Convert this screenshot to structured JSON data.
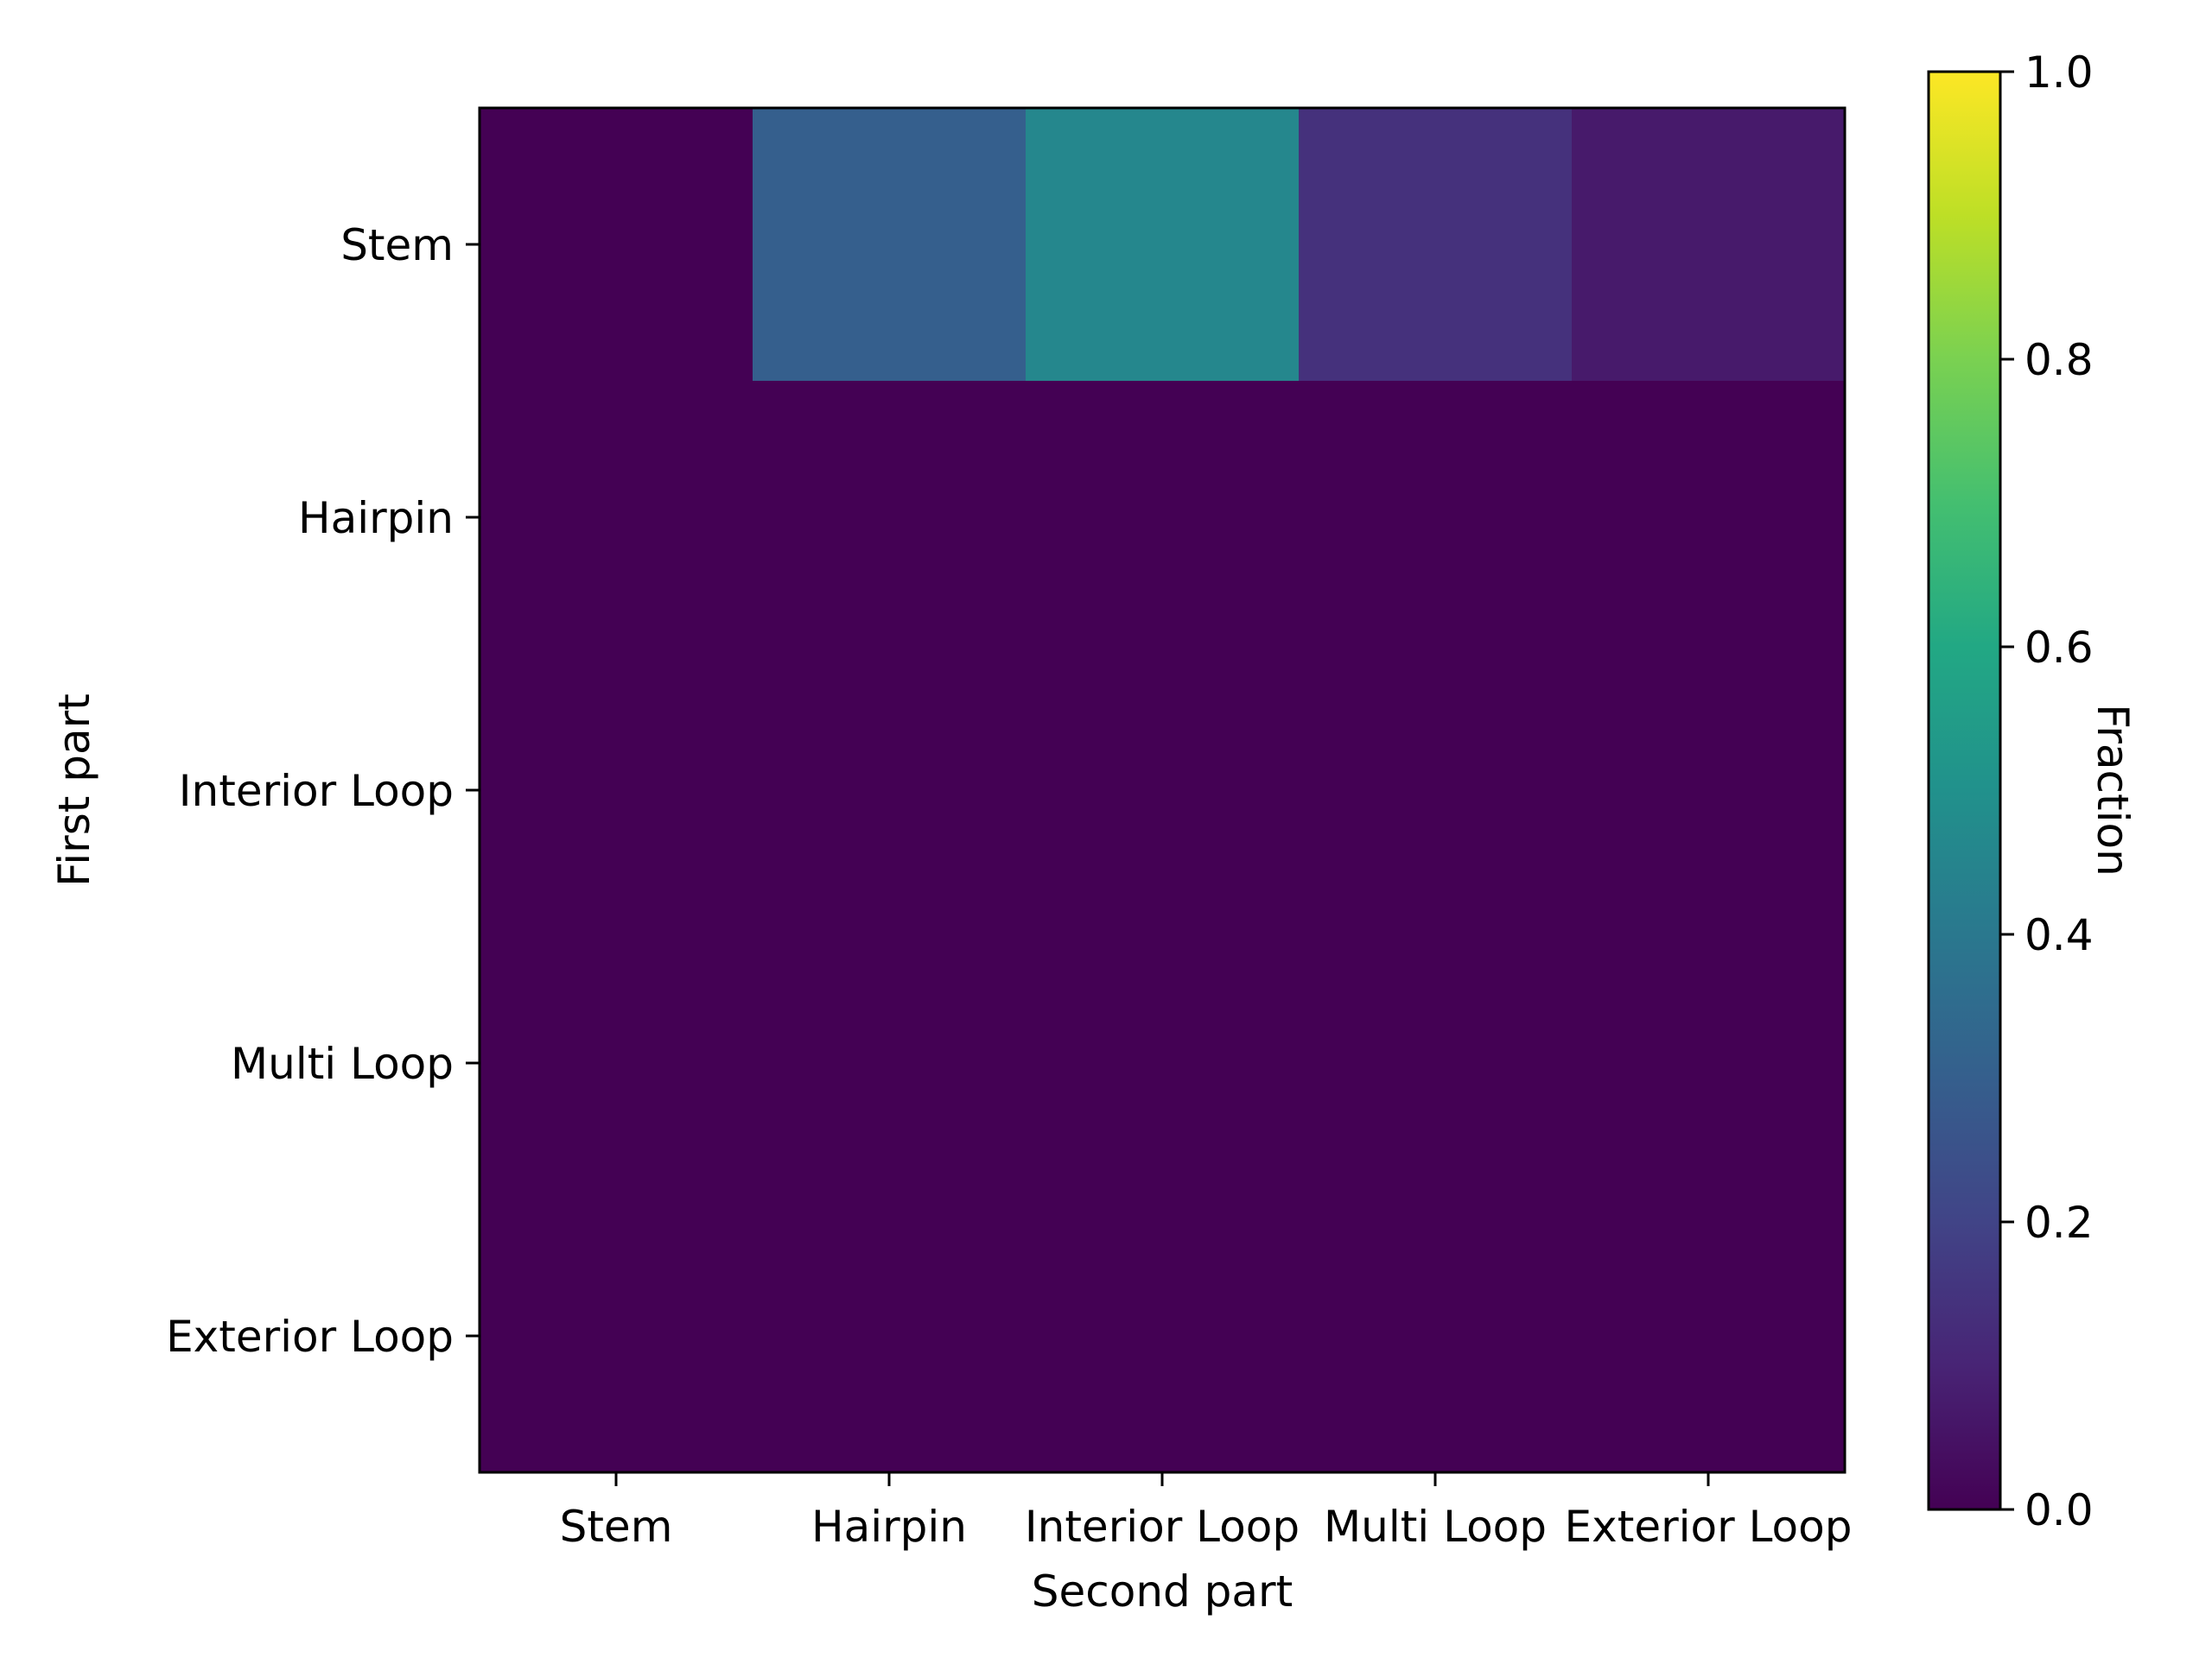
{
  "chart_data": {
    "type": "heatmap",
    "xlabel": "Second part",
    "ylabel": "First part",
    "x_categories": [
      "Stem",
      "Hairpin",
      "Interior Loop",
      "Multi Loop",
      "Exterior Loop"
    ],
    "y_categories": [
      "Stem",
      "Hairpin",
      "Interior Loop",
      "Multi Loop",
      "Exterior Loop"
    ],
    "values": [
      [
        0.0,
        0.3,
        0.46,
        0.14,
        0.07
      ],
      [
        0.0,
        0.0,
        0.0,
        0.0,
        0.0
      ],
      [
        0.0,
        0.0,
        0.0,
        0.0,
        0.0
      ],
      [
        0.0,
        0.0,
        0.0,
        0.0,
        0.0
      ],
      [
        0.0,
        0.0,
        0.0,
        0.0,
        0.0
      ]
    ],
    "colormap": "viridis",
    "colorbar": {
      "label": "Fraction",
      "range": [
        0.0,
        1.0
      ],
      "ticks": [
        "0.0",
        "0.2",
        "0.4",
        "0.6",
        "0.8",
        "1.0"
      ],
      "tick_values": [
        0.0,
        0.2,
        0.4,
        0.6,
        0.8,
        1.0
      ]
    }
  }
}
